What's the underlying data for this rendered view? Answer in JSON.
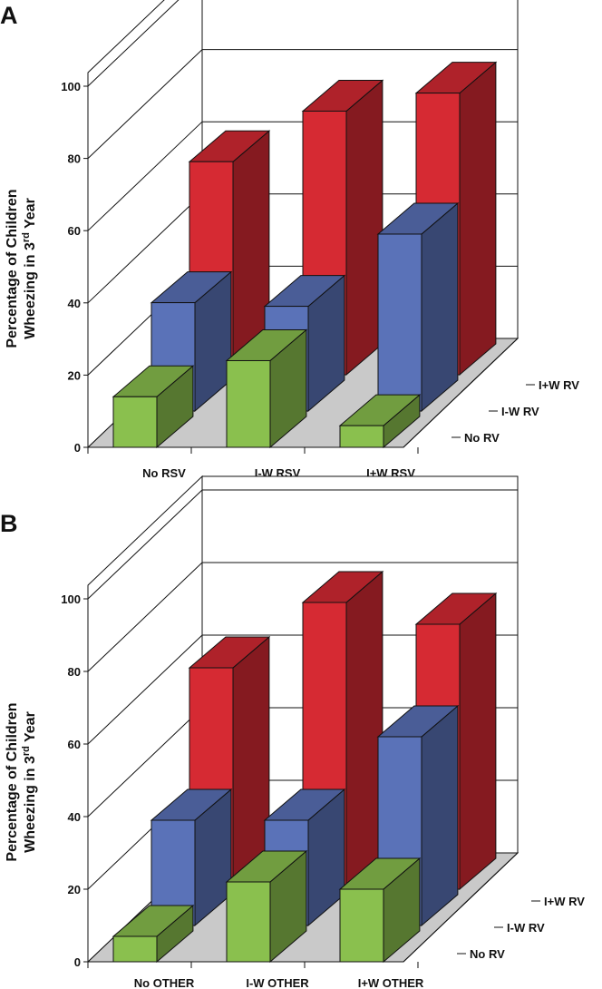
{
  "chart_data": [
    {
      "type": "bar",
      "panel_label": "A",
      "ylabel_line1": "Percentage of Children",
      "ylabel_line2_pre": "Wheezing in 3",
      "ylabel_line2_sup": "rd",
      "ylabel_line2_post": " Year",
      "categories": [
        "No RSV",
        "I-W RSV",
        "I+W RSV"
      ],
      "depth_categories": [
        "No RV",
        "I-W RV",
        "I+W RV"
      ],
      "yticks": [
        "0",
        "20",
        "40",
        "60",
        "80",
        "100"
      ],
      "ylim": [
        0,
        100
      ],
      "grid": true,
      "series": [
        {
          "name": "No RV",
          "color": "#8ac04e",
          "values": [
            14,
            24,
            6
          ]
        },
        {
          "name": "I-W RV",
          "color": "#5a72b8",
          "values": [
            30,
            29,
            49
          ]
        },
        {
          "name": "I+W RV",
          "color": "#d62a33",
          "values": [
            59,
            73,
            78
          ]
        }
      ]
    },
    {
      "type": "bar",
      "panel_label": "B",
      "ylabel_line1": "Percentage of Children",
      "ylabel_line2_pre": "Wheezing in 3",
      "ylabel_line2_sup": "rd",
      "ylabel_line2_post": " Year",
      "categories": [
        "No OTHER",
        "I-W OTHER",
        "I+W OTHER"
      ],
      "depth_categories": [
        "No RV",
        "I-W RV",
        "I+W RV"
      ],
      "yticks": [
        "0",
        "20",
        "40",
        "60",
        "80",
        "100"
      ],
      "ylim": [
        0,
        100
      ],
      "grid": true,
      "series": [
        {
          "name": "No RV",
          "color": "#8ac04e",
          "values": [
            7,
            22,
            20
          ]
        },
        {
          "name": "I-W RV",
          "color": "#5a72b8",
          "values": [
            29,
            29,
            52
          ]
        },
        {
          "name": "I+W RV",
          "color": "#d62a33",
          "values": [
            61,
            79,
            73
          ]
        }
      ]
    }
  ]
}
